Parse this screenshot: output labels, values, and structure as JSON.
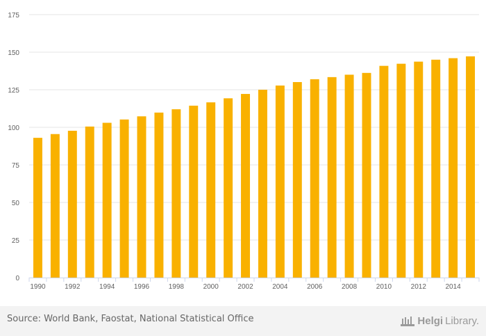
{
  "chart_data": {
    "type": "bar",
    "categories": [
      "1990",
      "1991",
      "1992",
      "1993",
      "1994",
      "1995",
      "1996",
      "1997",
      "1998",
      "1999",
      "2000",
      "2001",
      "2002",
      "2003",
      "2004",
      "2005",
      "2006",
      "2007",
      "2008",
      "2009",
      "2010",
      "2011",
      "2012",
      "2013",
      "2014",
      "2015"
    ],
    "values": [
      93,
      95.5,
      97.7,
      100.5,
      103,
      105.2,
      107.3,
      109.8,
      112,
      114.4,
      116.6,
      119.3,
      122.2,
      125,
      127.8,
      130.1,
      132,
      133.4,
      135,
      136.2,
      140.9,
      142.3,
      143.7,
      145,
      146,
      147.2
    ],
    "x_tick_labels": [
      "1990",
      "1992",
      "1994",
      "1996",
      "1998",
      "2000",
      "2002",
      "2004",
      "2006",
      "2008",
      "2010",
      "2012",
      "2014"
    ],
    "y_ticks": [
      0,
      25,
      50,
      75,
      100,
      125,
      150,
      175
    ],
    "ylim": [
      0,
      175
    ],
    "grid": true,
    "bar_color": "#f9b100",
    "grid_color": "#e6e6e6",
    "title": "",
    "xlabel": "",
    "ylabel": ""
  },
  "footer": {
    "source": "Source: World Bank, Faostat, National Statistical Office",
    "brand_bold": "Helgi",
    "brand_light": "Library."
  }
}
